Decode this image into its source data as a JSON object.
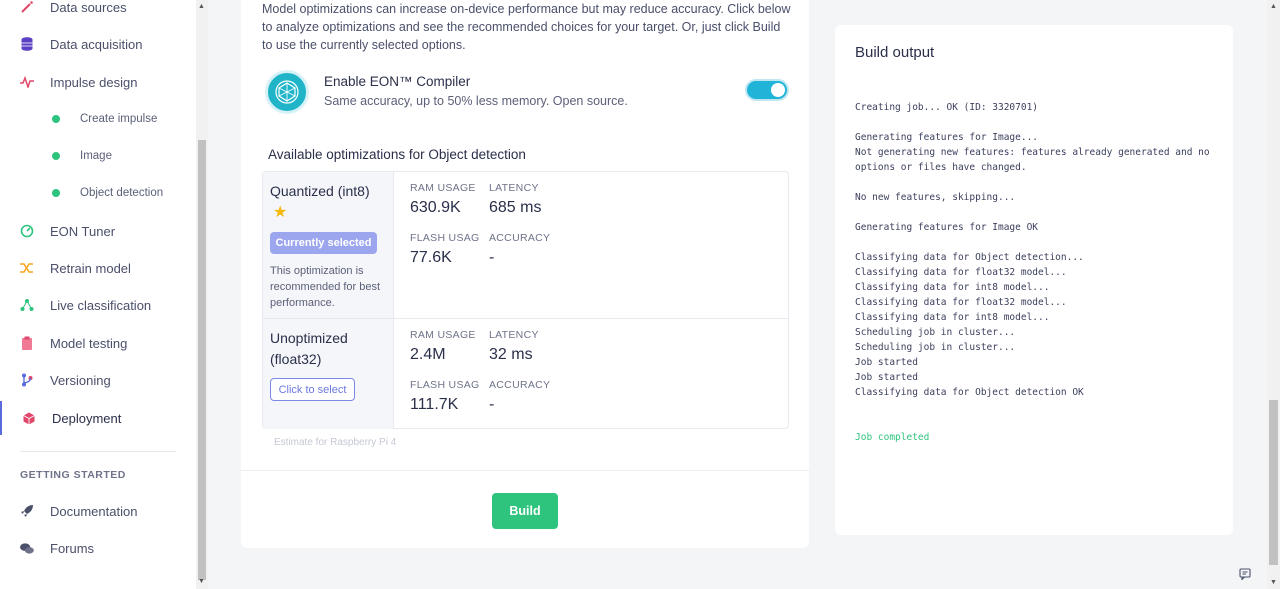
{
  "sidebar": {
    "items": [
      {
        "label": "Data sources",
        "icon": "wand-icon",
        "color": "#e0476b"
      },
      {
        "label": "Data acquisition",
        "icon": "database-icon",
        "color": "#5b3fc4"
      },
      {
        "label": "Impulse design",
        "icon": "pulse-icon",
        "color": "#e0476b"
      },
      {
        "label": "Create impulse",
        "icon": "dot-icon",
        "color": "#2fc47e"
      },
      {
        "label": "Image",
        "icon": "dot-icon",
        "color": "#2fc47e"
      },
      {
        "label": "Object detection",
        "icon": "dot-icon",
        "color": "#2fc47e"
      },
      {
        "label": "EON Tuner",
        "icon": "tuner-icon",
        "color": "#2fc47e"
      },
      {
        "label": "Retrain model",
        "icon": "shuffle-icon",
        "color": "#f5a623"
      },
      {
        "label": "Live classification",
        "icon": "network-icon",
        "color": "#2fc47e"
      },
      {
        "label": "Model testing",
        "icon": "clipboard-icon",
        "color": "#e0476b"
      },
      {
        "label": "Versioning",
        "icon": "branch-icon",
        "color": "#5b6bdc"
      },
      {
        "label": "Deployment",
        "icon": "box-icon",
        "color": "#e0476b"
      }
    ],
    "section_title": "GETTING STARTED",
    "getting_started": [
      {
        "label": "Documentation",
        "icon": "rocket-icon"
      },
      {
        "label": "Forums",
        "icon": "chat-bubbles-icon"
      }
    ]
  },
  "main": {
    "intro": "Model optimizations can increase on-device performance but may reduce accuracy. Click below to analyze optimizations and see the recommended choices for your target. Or, just click Build to use the currently selected options.",
    "eon": {
      "title": "Enable EON™ Compiler",
      "subtitle": "Same accuracy, up to 50% less memory. Open source.",
      "enabled": true
    },
    "available_title": "Available optimizations for Object detection",
    "options": [
      {
        "name": "Quantized (int8)",
        "badge": "Currently selected",
        "note": "This optimization is recommended for best performance.",
        "ram_label": "RAM USAGE",
        "ram": "630.9K",
        "latency_label": "LATENCY",
        "latency": "685 ms",
        "flash_label": "FLASH USAGE",
        "flash": "77.6K",
        "accuracy_label": "ACCURACY",
        "accuracy": "-"
      },
      {
        "name": "Unoptimized (float32)",
        "button": "Click to select",
        "ram_label": "RAM USAGE",
        "ram": "2.4M",
        "latency_label": "LATENCY",
        "latency": "32 ms",
        "flash_label": "FLASH USAGE",
        "flash": "111.7K",
        "accuracy_label": "ACCURACY",
        "accuracy": "-"
      }
    ],
    "estimate": "Estimate for Raspberry Pi 4",
    "build_label": "Build"
  },
  "output": {
    "title": "Build output",
    "lines": [
      "Creating job... OK (ID: 3320701)",
      "",
      "Generating features for Image...",
      "Not generating new features: features already generated and no options or files have changed.",
      "",
      "No new features, skipping...",
      "",
      "Generating features for Image OK",
      "",
      "Classifying data for Object detection...",
      "Classifying data for float32 model...",
      "Classifying data for int8 model...",
      "Classifying data for float32 model...",
      "Classifying data for int8 model...",
      "Scheduling job in cluster...",
      "Scheduling job in cluster...",
      "Job started",
      "Job started",
      "Classifying data for Object detection OK",
      "",
      ""
    ],
    "final_line": "Job completed"
  }
}
